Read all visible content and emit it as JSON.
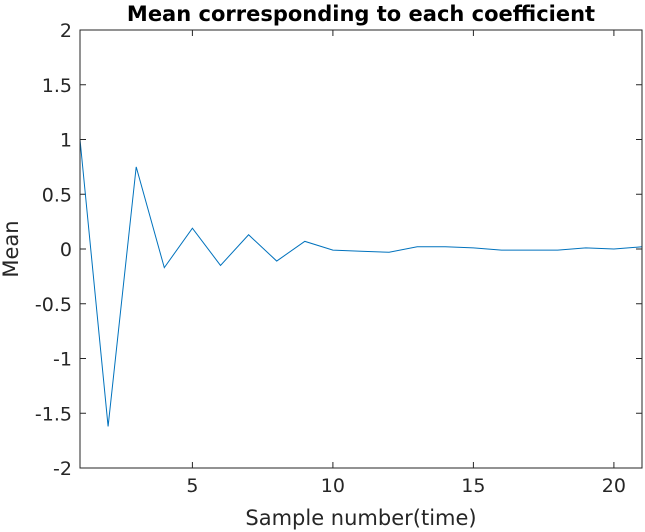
{
  "chart_data": {
    "type": "line",
    "title": "Mean corresponding to each coefficient",
    "xlabel": "Sample number(time)",
    "ylabel": "Mean",
    "xlim": [
      1,
      21
    ],
    "ylim": [
      -2,
      2
    ],
    "xticks": [
      5,
      10,
      15,
      20
    ],
    "yticks": [
      -2,
      -1.5,
      -1,
      -0.5,
      0,
      0.5,
      1,
      1.5,
      2
    ],
    "grid": false,
    "series": [
      {
        "color": "#0072bd",
        "x": [
          1,
          2,
          3,
          4,
          5,
          6,
          7,
          8,
          9,
          10,
          11,
          12,
          13,
          14,
          15,
          16,
          17,
          18,
          19,
          20,
          21
        ],
        "y": [
          1.0,
          -1.62,
          0.75,
          -0.17,
          0.19,
          -0.15,
          0.13,
          -0.11,
          0.07,
          -0.01,
          -0.02,
          -0.03,
          0.02,
          0.02,
          0.01,
          -0.01,
          -0.01,
          -0.01,
          0.01,
          0.0,
          0.02
        ]
      }
    ]
  }
}
